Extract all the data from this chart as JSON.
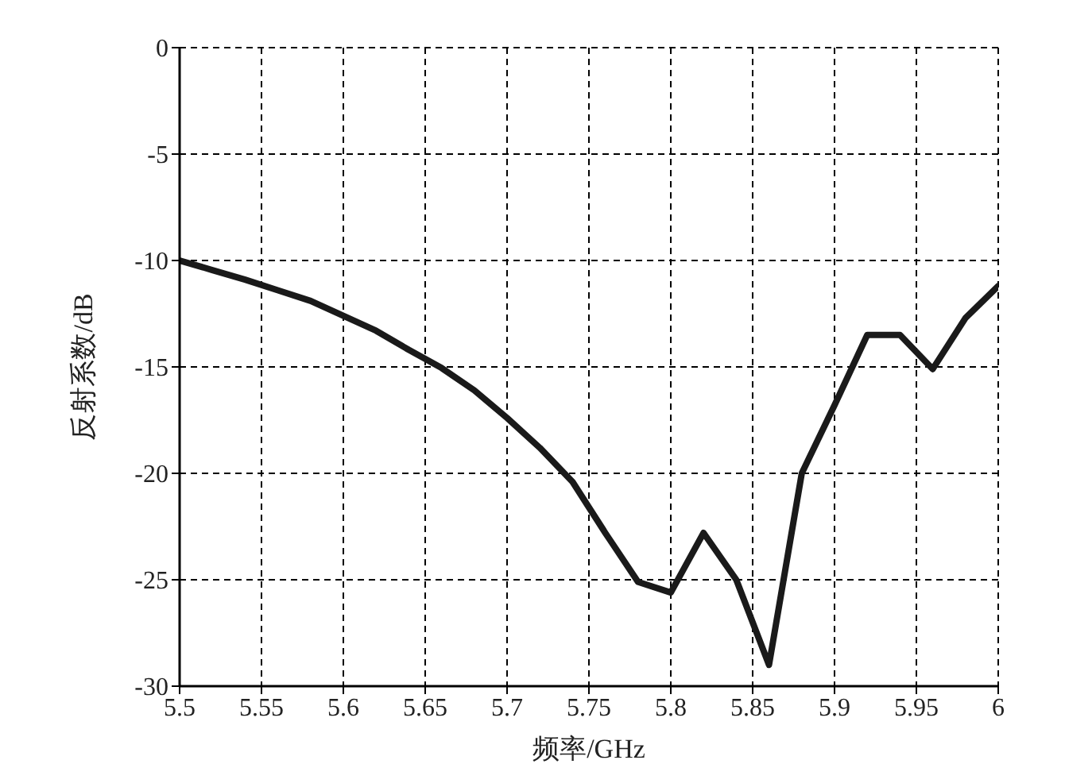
{
  "chart_data": {
    "type": "line",
    "xlabel": "频率/GHz",
    "ylabel": "反射系数/dB",
    "x": [
      5.5,
      5.52,
      5.54,
      5.56,
      5.58,
      5.6,
      5.62,
      5.64,
      5.66,
      5.68,
      5.7,
      5.72,
      5.74,
      5.76,
      5.78,
      5.8,
      5.82,
      5.84,
      5.86,
      5.88,
      5.9,
      5.92,
      5.94,
      5.96,
      5.98,
      6.0
    ],
    "series": [
      {
        "color": "#1a1a1a",
        "values": [
          -10.0,
          -10.45,
          -10.9,
          -11.4,
          -11.9,
          -12.6,
          -13.3,
          -14.2,
          -15.05,
          -16.1,
          -17.4,
          -18.8,
          -20.4,
          -22.8,
          -25.1,
          -25.6,
          -22.8,
          -25.0,
          -29.0,
          -20.0,
          -16.8,
          -13.5,
          -13.5,
          -15.1,
          -12.7,
          -11.2
        ]
      }
    ],
    "xlim": [
      5.5,
      6
    ],
    "ylim": [
      -30,
      0
    ],
    "xticks": [
      5.5,
      5.55,
      5.6,
      5.65,
      5.7,
      5.75,
      5.8,
      5.85,
      5.9,
      5.95,
      6
    ],
    "yticks": [
      -30,
      -25,
      -20,
      -15,
      -10,
      -5,
      0
    ],
    "grid": true,
    "marker": "none",
    "line_style": "solid"
  }
}
